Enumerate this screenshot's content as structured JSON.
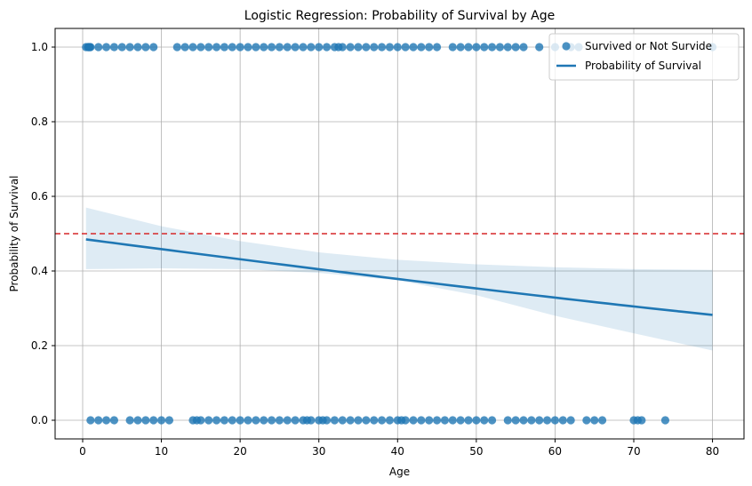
{
  "chart_data": {
    "type": "scatter",
    "title": "Logistic Regression: Probability of Survival by Age",
    "xlabel": "Age",
    "ylabel": "Probability of Survival",
    "xlim": [
      -3.5,
      84.0
    ],
    "ylim": [
      -0.05,
      1.05
    ],
    "xticks": [
      0,
      10,
      20,
      30,
      40,
      50,
      60,
      70,
      80
    ],
    "yticks": [
      0.0,
      0.2,
      0.4,
      0.6,
      0.8,
      1.0
    ],
    "grid": true,
    "legend_position": "top-right",
    "colors": {
      "points": "#1f77b4",
      "line": "#1f77b4",
      "band": "#1f77b4",
      "threshold": "#d62728",
      "grid": "#b0b0b0"
    },
    "threshold": 0.5,
    "series": [
      {
        "name": "Survived or Not Survide",
        "kind": "points",
        "x_survived": [
          0.42,
          0.67,
          0.75,
          0.83,
          0.92,
          1,
          2,
          3,
          4,
          5,
          6,
          7,
          8,
          9,
          12,
          13,
          14,
          15,
          16,
          17,
          18,
          19,
          20,
          21,
          22,
          23,
          24,
          25,
          26,
          27,
          28,
          29,
          30,
          31,
          32,
          32.5,
          33,
          34,
          35,
          36,
          37,
          38,
          39,
          40,
          41,
          42,
          43,
          44,
          45,
          47,
          48,
          49,
          50,
          51,
          52,
          53,
          54,
          55,
          56,
          58,
          60,
          62,
          63,
          80
        ],
        "x_not_survived": [
          1,
          2,
          3,
          4,
          6,
          7,
          8,
          9,
          10,
          11,
          14,
          14.5,
          15,
          16,
          17,
          18,
          19,
          20,
          21,
          22,
          23,
          24,
          25,
          26,
          27,
          28,
          28.5,
          29,
          30,
          30.5,
          31,
          32,
          33,
          34,
          35,
          36,
          37,
          38,
          39,
          40,
          40.5,
          41,
          42,
          43,
          44,
          45,
          46,
          47,
          48,
          49,
          50,
          51,
          52,
          54,
          55,
          56,
          57,
          58,
          59,
          60,
          61,
          62,
          64,
          65,
          66,
          70,
          70.5,
          71,
          74
        ]
      },
      {
        "name": "Probability of Survival",
        "kind": "logistic",
        "x_range": [
          0.42,
          80
        ],
        "intercept": -0.0567,
        "slope": -0.01096,
        "band_x": [
          0.42,
          10,
          20,
          30,
          40,
          50,
          60,
          70,
          80
        ],
        "band_lower": [
          0.405,
          0.407,
          0.405,
          0.395,
          0.375,
          0.335,
          0.28,
          0.233,
          0.187
        ],
        "band_upper": [
          0.57,
          0.52,
          0.48,
          0.45,
          0.43,
          0.418,
          0.41,
          0.405,
          0.403
        ]
      }
    ]
  }
}
